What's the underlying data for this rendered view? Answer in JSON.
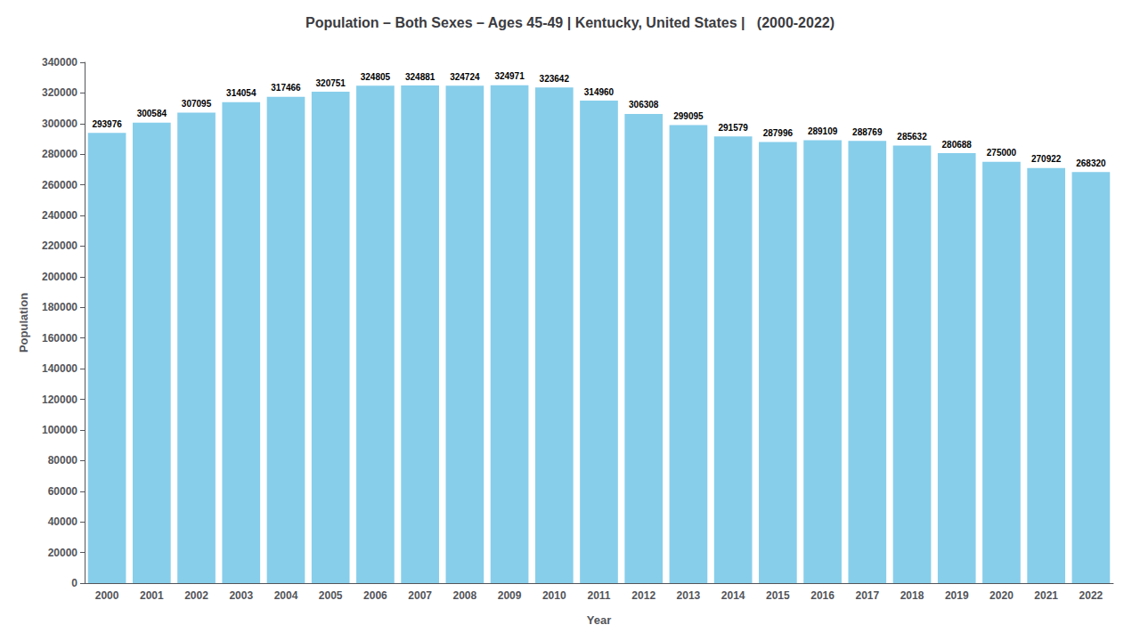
{
  "chart_data": {
    "type": "bar",
    "title": "Population – Both Sexes – Ages 45-49 | Kentucky, United States |   (2000-2022)",
    "xlabel": "Year",
    "ylabel": "Population",
    "categories": [
      "2000",
      "2001",
      "2002",
      "2003",
      "2004",
      "2005",
      "2006",
      "2007",
      "2008",
      "2009",
      "2010",
      "2011",
      "2012",
      "2013",
      "2014",
      "2015",
      "2016",
      "2017",
      "2018",
      "2019",
      "2020",
      "2021",
      "2022"
    ],
    "values": [
      293976,
      300584,
      307095,
      314054,
      317466,
      320751,
      324805,
      324881,
      324724,
      324971,
      323642,
      314960,
      306308,
      299095,
      291579,
      287996,
      289109,
      288769,
      285632,
      280688,
      275000,
      270922,
      268320
    ],
    "color": "#87CEEB",
    "ylim": [
      0,
      340000
    ],
    "yticks": [
      0,
      20000,
      40000,
      60000,
      80000,
      100000,
      120000,
      140000,
      160000,
      180000,
      200000,
      220000,
      240000,
      260000,
      280000,
      300000,
      320000,
      340000
    ],
    "grid": false,
    "data_labels": true
  }
}
